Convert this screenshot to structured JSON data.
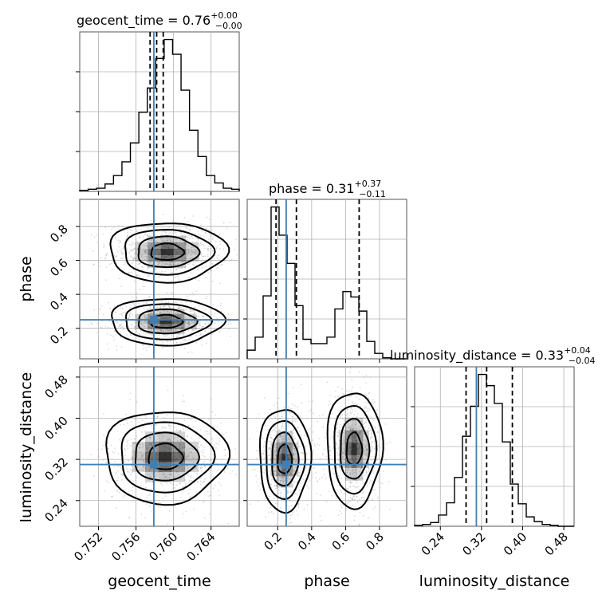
{
  "chart_data": {
    "type": "corner",
    "parameters": [
      {
        "name": "geocent_time",
        "axis_label": "geocent_time",
        "title_prefix": "geocent_time = 0.76",
        "title_plus": "+0.00",
        "title_minus": "−0.00",
        "range": [
          0.75,
          0.767
        ],
        "ticks": [
          0.752,
          0.756,
          0.76,
          0.764
        ],
        "tick_labels": [
          "0.752",
          "0.756",
          "0.760",
          "0.764"
        ],
        "truth": 0.7579,
        "quantiles": [
          0.7575,
          0.7582,
          0.7589
        ],
        "hist_edges": [
          0.75,
          0.7509,
          0.7518,
          0.7527,
          0.7536,
          0.7545,
          0.7554,
          0.7563,
          0.7572,
          0.7581,
          0.759,
          0.7599,
          0.7608,
          0.7617,
          0.7626,
          0.7635,
          0.7644,
          0.7653,
          0.7662,
          0.767
        ],
        "hist_counts": [
          1,
          2,
          3,
          7,
          15,
          28,
          46,
          75,
          98,
          126,
          144,
          130,
          96,
          58,
          33,
          15,
          8,
          3,
          2
        ]
      },
      {
        "name": "phase",
        "axis_label": "phase",
        "title_prefix": "phase = 0.31",
        "title_plus": "+0.37",
        "title_minus": "−0.11",
        "range": [
          0.02,
          0.96
        ],
        "ticks": [
          0.2,
          0.4,
          0.6,
          0.8
        ],
        "tick_labels": [
          "0.2",
          "0.4",
          "0.6",
          "0.8"
        ],
        "truth": 0.25,
        "quantiles": [
          0.19,
          0.31,
          0.68
        ],
        "hist_edges": [
          0.02,
          0.067,
          0.114,
          0.161,
          0.208,
          0.255,
          0.302,
          0.349,
          0.396,
          0.443,
          0.49,
          0.537,
          0.584,
          0.631,
          0.678,
          0.725,
          0.772,
          0.819,
          0.866,
          0.913,
          0.96
        ],
        "hist_counts": [
          8,
          20,
          58,
          140,
          114,
          88,
          49,
          18,
          14,
          14,
          20,
          46,
          62,
          57,
          44,
          16,
          5,
          1,
          0,
          0
        ]
      },
      {
        "name": "luminosity_distance",
        "axis_label": "luminosity_distance",
        "title_prefix": "luminosity_distance = 0.33",
        "title_plus": "+0.04",
        "title_minus": "−0.04",
        "range": [
          0.19,
          0.5
        ],
        "ticks": [
          0.24,
          0.32,
          0.4,
          0.48
        ],
        "tick_labels": [
          "0.24",
          "0.32",
          "0.40",
          "0.48"
        ],
        "truth": 0.31,
        "quantiles": [
          0.29,
          0.33,
          0.38
        ],
        "hist_edges": [
          0.19,
          0.2055,
          0.221,
          0.2365,
          0.252,
          0.2675,
          0.283,
          0.2985,
          0.314,
          0.3295,
          0.345,
          0.3605,
          0.376,
          0.3915,
          0.407,
          0.4225,
          0.438,
          0.4535,
          0.469,
          0.4845,
          0.5
        ],
        "hist_counts": [
          1,
          2,
          4,
          12,
          25,
          52,
          96,
          128,
          162,
          150,
          131,
          90,
          45,
          24,
          10,
          5,
          2,
          1,
          0,
          0
        ]
      }
    ],
    "contours": {
      "phase_vs_geocent_time": {
        "x": "geocent_time",
        "y": "phase",
        "modes": [
          {
            "cx": 0.7593,
            "cy": 0.65,
            "sx": 0.0025,
            "sy": 0.07
          },
          {
            "cx": 0.7592,
            "cy": 0.24,
            "sx": 0.0024,
            "sy": 0.055
          }
        ]
      },
      "luminosity_distance_vs_geocent_time": {
        "x": "geocent_time",
        "y": "luminosity_distance",
        "modes": [
          {
            "cx": 0.7591,
            "cy": 0.325,
            "sx": 0.0026,
            "sy": 0.036
          }
        ]
      },
      "luminosity_distance_vs_phase": {
        "x": "phase",
        "y": "luminosity_distance",
        "modes": [
          {
            "cx": 0.24,
            "cy": 0.32,
            "sx": 0.06,
            "sy": 0.04
          },
          {
            "cx": 0.65,
            "cy": 0.34,
            "sx": 0.065,
            "sy": 0.045
          }
        ]
      }
    },
    "colors": {
      "truth": "#3f7fb5",
      "lines": "#000000",
      "grid": "#b0b0b0",
      "density": "#000000"
    },
    "grid": true
  }
}
